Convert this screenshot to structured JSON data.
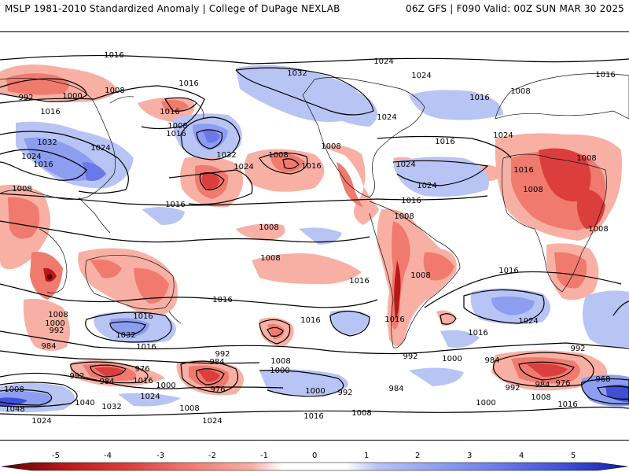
{
  "header": {
    "left_title": "MSLP 1981-2010 Standardized Anomaly | College of DuPage NEXLAB",
    "right_title": "06Z GFS | F090 Valid: 00Z SUN MAR 30 2025"
  },
  "map": {
    "isobar_labels": [
      {
        "id": "l1",
        "text": "1016"
      },
      {
        "id": "l2",
        "text": "1024"
      },
      {
        "id": "l3",
        "text": "1024"
      },
      {
        "id": "l4",
        "text": "1032"
      },
      {
        "id": "l5",
        "text": "992"
      },
      {
        "id": "l6",
        "text": "1000"
      },
      {
        "id": "l7",
        "text": "1008"
      },
      {
        "id": "l8",
        "text": "1016"
      },
      {
        "id": "l9",
        "text": "1016"
      },
      {
        "id": "l10",
        "text": "1016"
      },
      {
        "id": "l11",
        "text": "1032"
      },
      {
        "id": "l12",
        "text": "1024"
      },
      {
        "id": "l13",
        "text": "1024"
      },
      {
        "id": "l14",
        "text": "1016"
      },
      {
        "id": "l15",
        "text": "1008"
      },
      {
        "id": "l16",
        "text": "1016"
      },
      {
        "id": "l17",
        "text": "1032"
      },
      {
        "id": "l18",
        "text": "1024"
      },
      {
        "id": "l19",
        "text": "1008"
      },
      {
        "id": "l20",
        "text": "1016"
      },
      {
        "id": "l21",
        "text": "1024"
      },
      {
        "id": "l22",
        "text": "1016"
      },
      {
        "id": "l23",
        "text": "1008"
      },
      {
        "id": "l24",
        "text": "1008"
      },
      {
        "id": "l25",
        "text": "1016"
      },
      {
        "id": "l26",
        "text": "1024"
      },
      {
        "id": "l27",
        "text": "1016"
      },
      {
        "id": "l28",
        "text": "1008"
      },
      {
        "id": "l29",
        "text": "1024"
      },
      {
        "id": "l30",
        "text": "1016"
      },
      {
        "id": "l31",
        "text": "1008"
      },
      {
        "id": "l32",
        "text": "1016"
      },
      {
        "id": "l33",
        "text": "1008"
      },
      {
        "id": "l34",
        "text": "1008"
      },
      {
        "id": "l35",
        "text": "1008"
      },
      {
        "id": "l36",
        "text": "1016"
      },
      {
        "id": "l37",
        "text": "1008"
      },
      {
        "id": "l38",
        "text": "1008"
      },
      {
        "id": "l39",
        "text": "1016"
      },
      {
        "id": "l40",
        "text": "1016"
      },
      {
        "id": "l41",
        "text": "1016"
      },
      {
        "id": "l42",
        "text": "1024"
      },
      {
        "id": "l43",
        "text": "1016"
      },
      {
        "id": "l44",
        "text": "1008"
      },
      {
        "id": "l45",
        "text": "1000"
      },
      {
        "id": "l46",
        "text": "992"
      },
      {
        "id": "l47",
        "text": "984"
      },
      {
        "id": "l48",
        "text": "1032"
      },
      {
        "id": "l49",
        "text": "1016"
      },
      {
        "id": "l50",
        "text": "1016"
      },
      {
        "id": "l51",
        "text": "1008"
      },
      {
        "id": "l52",
        "text": "1000"
      },
      {
        "id": "l53",
        "text": "992"
      },
      {
        "id": "l54",
        "text": "984"
      },
      {
        "id": "l55",
        "text": "976"
      },
      {
        "id": "l56",
        "text": "984"
      },
      {
        "id": "l57",
        "text": "976"
      },
      {
        "id": "l58",
        "text": "1016"
      },
      {
        "id": "l59",
        "text": "1000"
      },
      {
        "id": "l60",
        "text": "992"
      },
      {
        "id": "l61",
        "text": "1024"
      },
      {
        "id": "l62",
        "text": "1008"
      },
      {
        "id": "l63",
        "text": "1040"
      },
      {
        "id": "l64",
        "text": "1032"
      },
      {
        "id": "l65",
        "text": "1048"
      },
      {
        "id": "l66",
        "text": "1024"
      },
      {
        "id": "l67",
        "text": "1008"
      },
      {
        "id": "l68",
        "text": "1024"
      },
      {
        "id": "l69",
        "text": "1008"
      },
      {
        "id": "l70",
        "text": "1016"
      },
      {
        "id": "l71",
        "text": "1000"
      },
      {
        "id": "l72",
        "text": "992"
      },
      {
        "id": "l73",
        "text": "992"
      },
      {
        "id": "l74",
        "text": "984"
      },
      {
        "id": "l75",
        "text": "1000"
      },
      {
        "id": "l76",
        "text": "984"
      },
      {
        "id": "l77",
        "text": "992"
      },
      {
        "id": "l78",
        "text": "1000"
      },
      {
        "id": "l79",
        "text": "1008"
      },
      {
        "id": "l80",
        "text": "1016"
      },
      {
        "id": "l81",
        "text": "992"
      },
      {
        "id": "l82",
        "text": "984"
      },
      {
        "id": "l83",
        "text": "976"
      },
      {
        "id": "l84",
        "text": "968"
      },
      {
        "id": "l85",
        "text": "1016"
      },
      {
        "id": "l86",
        "text": "1024"
      },
      {
        "id": "l87",
        "text": "1008"
      },
      {
        "id": "l88",
        "text": "1016"
      }
    ]
  },
  "colorbar": {
    "ticks": [
      "-5",
      "-4",
      "-3",
      "-2",
      "-1",
      "0",
      "1",
      "2",
      "3",
      "4",
      "5"
    ],
    "colors": [
      "#5a0000",
      "#b81818",
      "#dc3d3d",
      "#f07a6e",
      "#f8b0a4",
      "#ffffff",
      "#b8c4f4",
      "#8d9ef0",
      "#6a78e8",
      "#3f4fd8",
      "#101ea8"
    ]
  }
}
